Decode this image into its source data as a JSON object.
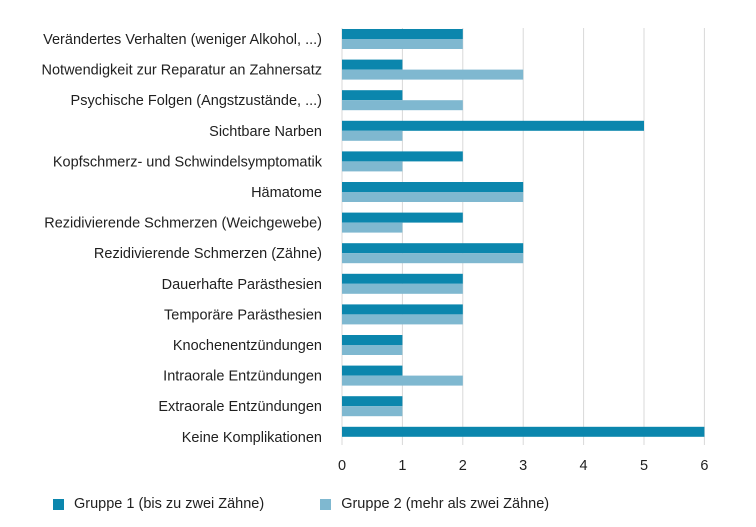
{
  "chart_data": {
    "type": "bar",
    "orientation": "horizontal",
    "categories": [
      "Verändertes Verhalten (weniger Alkohol, ...)",
      "Notwendigkeit zur Reparatur an Zahnersatz",
      "Psychische Folgen (Angstzustände, ...)",
      "Sichtbare Narben",
      "Kopfschmerz- und Schwindelsymptomatik",
      "Hämatome",
      "Rezidivierende Schmerzen (Weichgewebe)",
      "Rezidivierende Schmerzen (Zähne)",
      "Dauerhafte Parästhesien",
      "Temporäre Parästhesien",
      "Knochenentzündungen",
      "Intraorale Entzündungen",
      "Extraorale Entzündungen",
      "Keine Komplikationen"
    ],
    "series": [
      {
        "name": "Gruppe 1 (bis zu zwei Zähne)",
        "color": "#0b86ad",
        "values": [
          2,
          1,
          1,
          5,
          2,
          3,
          2,
          3,
          2,
          2,
          1,
          1,
          1,
          6
        ]
      },
      {
        "name": "Gruppe 2 (mehr als zwei Zähne)",
        "color": "#7fb8d0",
        "values": [
          2,
          3,
          2,
          1,
          1,
          3,
          1,
          3,
          2,
          2,
          1,
          2,
          1,
          0
        ]
      }
    ],
    "xticks": [
      "0",
      "1",
      "2",
      "3",
      "4",
      "5",
      "6"
    ],
    "xlim": [
      0,
      6
    ],
    "grid": "vertical",
    "legend_position": "bottom"
  }
}
